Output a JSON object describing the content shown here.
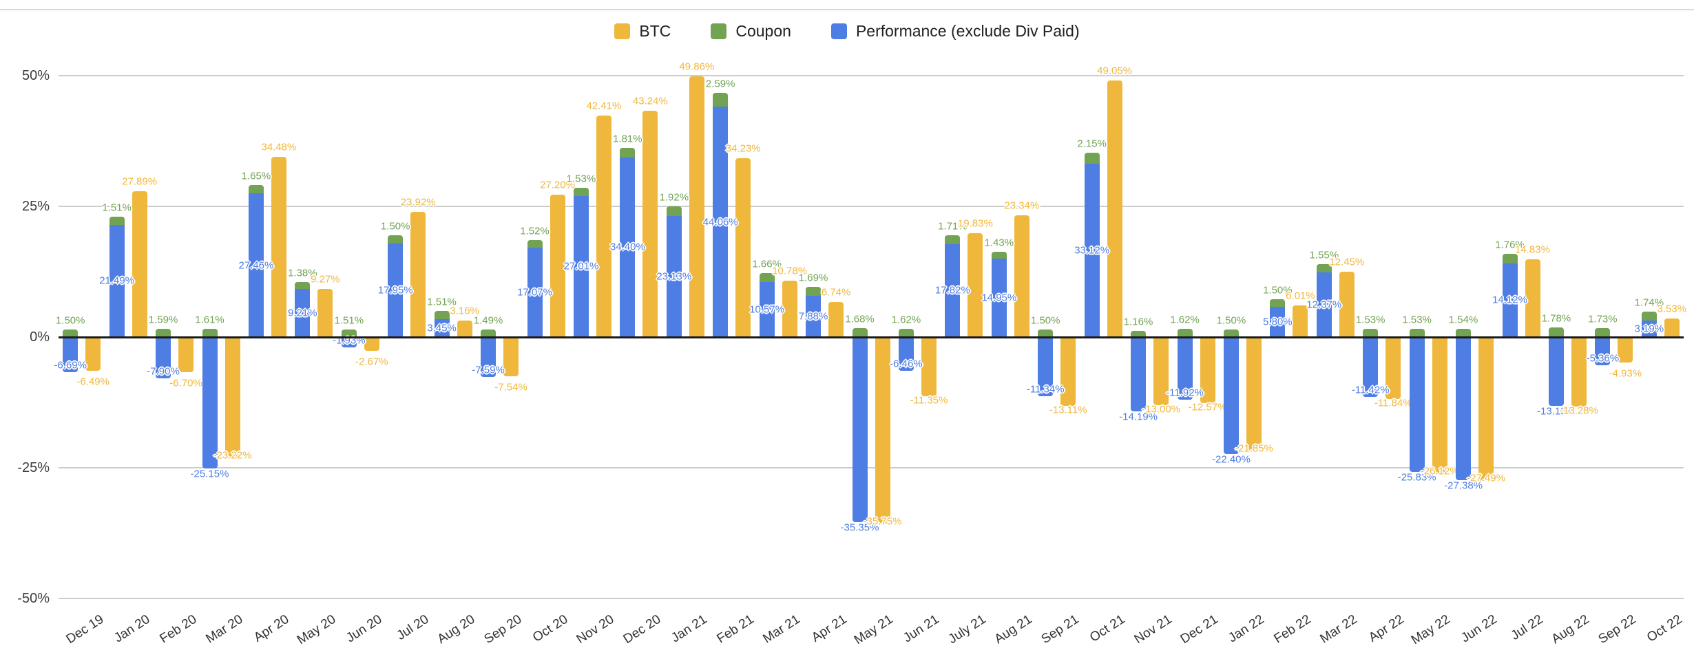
{
  "legend": {
    "items": [
      {
        "label": "BTC",
        "color": "#F0B73D"
      },
      {
        "label": "Coupon",
        "color": "#71A352"
      },
      {
        "label": "Performance (exclude Div Paid)",
        "color": "#4E7DE3"
      }
    ]
  },
  "axis": {
    "y_ticks": [
      {
        "label": "50%",
        "value": 50
      },
      {
        "label": "25%",
        "value": 25
      },
      {
        "label": "0%",
        "value": 0
      },
      {
        "label": "-25%",
        "value": -25
      },
      {
        "label": "-50%",
        "value": -50
      }
    ]
  },
  "chart_data": {
    "type": "bar",
    "title": "",
    "legend_position": "top-center",
    "grid": true,
    "ylim": [
      -50,
      50
    ],
    "value_label_format": "0.00%",
    "stacking": "Coupon is stacked on top of the Performance column; BTC is a separate column per month",
    "categories": [
      "Dec 19",
      "Jan 20",
      "Feb 20",
      "Mar 20",
      "Apr 20",
      "May 20",
      "Jun 20",
      "Jul 20",
      "Aug 20",
      "Sep 20",
      "Oct 20",
      "Nov 20",
      "Dec 20",
      "Jan 21",
      "Feb 21",
      "Mar 21",
      "Apr 21",
      "May 21",
      "Jun 21",
      "July 21",
      "Aug 21",
      "Sep 21",
      "Oct 21",
      "Nov 21",
      "Dec 21",
      "Jan 22",
      "Feb 22",
      "Mar 22",
      "Apr 22",
      "May 22",
      "Jun 22",
      "Jul 22",
      "Aug 22",
      "Sep 22",
      "Oct 22"
    ],
    "series": [
      {
        "name": "BTC",
        "color": "#F0B73D",
        "values": [
          -6.49,
          27.89,
          -6.7,
          -23.22,
          34.48,
          9.27,
          -2.67,
          23.92,
          3.16,
          -7.54,
          27.2,
          42.41,
          43.24,
          49.86,
          34.23,
          10.78,
          6.74,
          -35.75,
          -11.35,
          19.83,
          23.34,
          -13.11,
          49.05,
          -13.0,
          -12.57,
          -21.85,
          6.01,
          12.45,
          -11.84,
          -26.12,
          -27.49,
          14.83,
          -13.28,
          -4.93,
          3.53
        ]
      },
      {
        "name": "Coupon",
        "color": "#71A352",
        "values": [
          1.5,
          1.51,
          1.59,
          1.61,
          1.65,
          1.38,
          1.51,
          1.5,
          1.51,
          1.49,
          1.52,
          1.53,
          1.81,
          1.92,
          2.59,
          1.66,
          1.69,
          1.68,
          1.62,
          1.71,
          1.43,
          1.5,
          2.15,
          1.16,
          1.62,
          1.5,
          1.5,
          1.55,
          1.53,
          1.53,
          1.54,
          1.76,
          1.78,
          1.73,
          1.74
        ]
      },
      {
        "name": "Performance (exclude Div Paid)",
        "color": "#4E7DE3",
        "values": [
          -6.69,
          21.49,
          -7.9,
          -25.15,
          27.46,
          9.21,
          -1.93,
          17.95,
          3.45,
          -7.59,
          17.07,
          27.01,
          34.4,
          23.13,
          44.06,
          10.57,
          7.88,
          -35.35,
          -6.46,
          17.82,
          14.95,
          -11.34,
          33.12,
          -14.19,
          -11.92,
          -22.4,
          5.8,
          12.37,
          -11.42,
          -25.83,
          -27.38,
          14.12,
          -13.13,
          -5.36,
          3.19
        ]
      }
    ]
  }
}
